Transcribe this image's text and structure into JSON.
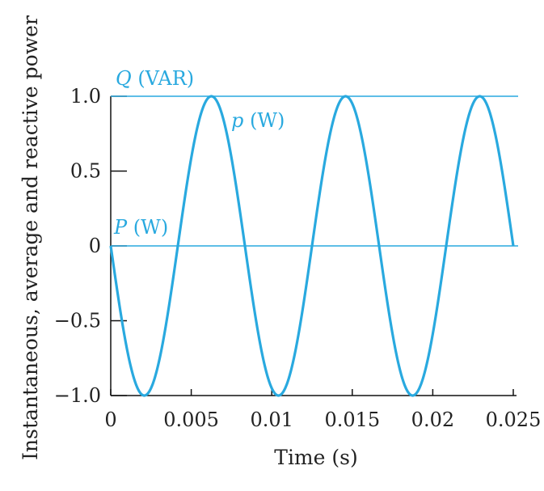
{
  "chart_data": {
    "type": "line",
    "title": "",
    "xlabel": "Time (s)",
    "ylabel": "Instantaneous, average and reactive power",
    "xlim": [
      0,
      0.025
    ],
    "ylim": [
      -1.0,
      1.0
    ],
    "xticks": [
      {
        "value": 0,
        "label": "0"
      },
      {
        "value": 0.005,
        "label": "0.005"
      },
      {
        "value": 0.01,
        "label": "0.01"
      },
      {
        "value": 0.015,
        "label": "0.015"
      },
      {
        "value": 0.02,
        "label": "0.02"
      },
      {
        "value": 0.025,
        "label": "0.025"
      }
    ],
    "yticks": [
      {
        "value": 1.0,
        "label": "1.0"
      },
      {
        "value": 0.5,
        "label": "0.5"
      },
      {
        "value": 0,
        "label": "0"
      },
      {
        "value": -0.5,
        "label": "−0.5"
      },
      {
        "value": -1.0,
        "label": "−1.0"
      }
    ],
    "grid": false,
    "line_color": "#29a9df",
    "series": [
      {
        "label_italic": "Q",
        "label_rest": " (VAR)",
        "kind": "constant",
        "value": 1.0,
        "stroke_width": 1.6
      },
      {
        "label_italic": "p",
        "label_rest": " (W)",
        "kind": "function",
        "function": "-sin(2*pi*f*t)",
        "frequency_hz": 120,
        "t_range": [
          0,
          0.025
        ],
        "stroke_width": 3.2,
        "sample_points": [
          {
            "x": 0,
            "y": 0
          },
          {
            "x": 0.00208,
            "y": -1.0
          },
          {
            "x": 0.00417,
            "y": 0
          },
          {
            "x": 0.00625,
            "y": 1.0
          },
          {
            "x": 0.00833,
            "y": 0
          },
          {
            "x": 0.01042,
            "y": -1.0
          },
          {
            "x": 0.0125,
            "y": 0
          },
          {
            "x": 0.01458,
            "y": 1.0
          },
          {
            "x": 0.01667,
            "y": 0
          },
          {
            "x": 0.01875,
            "y": -1.0
          },
          {
            "x": 0.02083,
            "y": 0
          },
          {
            "x": 0.02292,
            "y": 1.0
          },
          {
            "x": 0.025,
            "y": 0
          }
        ]
      },
      {
        "label_italic": "P",
        "label_rest": " (W)",
        "kind": "constant",
        "value": 0,
        "stroke_width": 1.6
      }
    ]
  }
}
